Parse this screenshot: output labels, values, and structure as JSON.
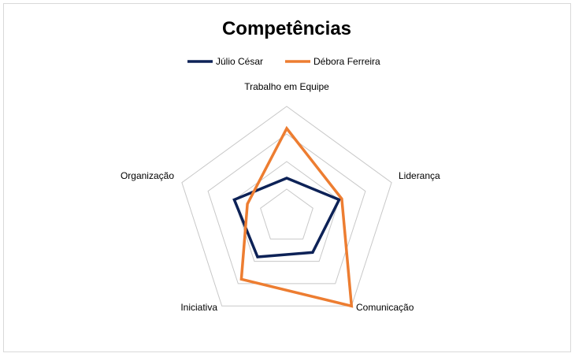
{
  "chart_data": {
    "type": "radar",
    "title": "Competências",
    "categories": [
      "Trabalho em Equipe",
      "Liderança",
      "Comunicação",
      "Iniciativa",
      "Organização"
    ],
    "max": 4,
    "rings": 4,
    "gridlines": true,
    "legend_position": "top",
    "series": [
      {
        "name": "Júlio César",
        "color": "#0d2257",
        "values": [
          1.4,
          2.0,
          1.6,
          1.8,
          2.0
        ]
      },
      {
        "name": "Débora Ferreira",
        "color": "#ed7d31",
        "values": [
          3.2,
          2.1,
          4.0,
          2.8,
          1.5
        ]
      }
    ]
  }
}
